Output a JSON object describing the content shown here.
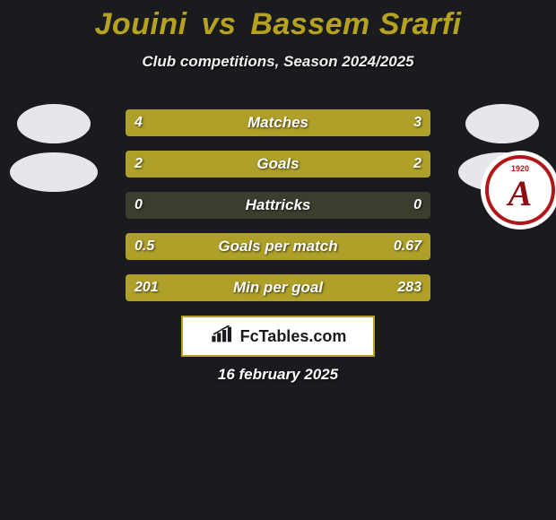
{
  "title": {
    "player1": "Jouini",
    "vs": "vs",
    "player2": "Bassem Srarfi",
    "color": "#b6a21f",
    "fontsize": 34
  },
  "subtitle": {
    "text": "Club competitions, Season 2024/2025",
    "fontsize": 17
  },
  "avatars": {
    "left_color": "#e6e7ea",
    "right_color": "#e6e7ea",
    "crest_right": {
      "letter": "A",
      "year": "1920",
      "ring_color": "#b3161a"
    }
  },
  "bars": {
    "track_color": "#3b3d2e",
    "left_fill_color": "#afa029",
    "right_fill_color": "#afa029",
    "rows": [
      {
        "label": "Matches",
        "left": "4",
        "right": "3",
        "left_pct": 57,
        "right_pct": 43
      },
      {
        "label": "Goals",
        "left": "2",
        "right": "2",
        "left_pct": 50,
        "right_pct": 50
      },
      {
        "label": "Hattricks",
        "left": "0",
        "right": "0",
        "left_pct": 0,
        "right_pct": 0
      },
      {
        "label": "Goals per match",
        "left": "0.5",
        "right": "0.67",
        "left_pct": 43,
        "right_pct": 57
      },
      {
        "label": "Min per goal",
        "left": "201",
        "right": "283",
        "left_pct": 42,
        "right_pct": 58
      }
    ]
  },
  "brand": {
    "text": "FcTables.com",
    "border_color": "#b6a21f",
    "bg_color": "#ffffff",
    "text_color": "#1a1b1e"
  },
  "footer_date": "16 february 2025",
  "background_color": "#1a1b1e"
}
